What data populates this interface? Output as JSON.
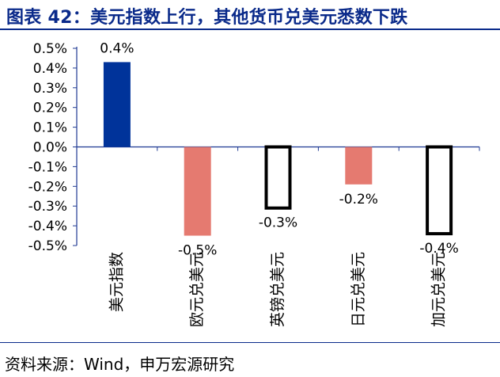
{
  "header": {
    "title": "图表 42：美元指数上行，其他货币兑美元悉数下跌"
  },
  "footer": {
    "source": "资料来源：Wind，申万宏源研究"
  },
  "chart_data": {
    "type": "bar",
    "title": "",
    "xlabel": "",
    "ylabel": "",
    "ylim": [
      -0.5,
      0.5
    ],
    "yticks": [
      "0.5%",
      "0.4%",
      "0.3%",
      "0.2%",
      "0.1%",
      "0.0%",
      "-0.1%",
      "-0.2%",
      "-0.3%",
      "-0.4%",
      "-0.5%"
    ],
    "categories": [
      "美元指数",
      "欧元兑美元",
      "英镑兑美元",
      "日元兑美元",
      "加元兑美元"
    ],
    "values": [
      0.43,
      -0.45,
      -0.31,
      -0.19,
      -0.44
    ],
    "data_labels": [
      "0.4%",
      "-0.5%",
      "-0.3%",
      "-0.2%",
      "-0.4%"
    ],
    "bar_styles": [
      "solid",
      "solid",
      "outline",
      "solid",
      "outline"
    ],
    "bar_colors": [
      "#00339a",
      "#e57a70",
      "#000000",
      "#e57a70",
      "#000000"
    ],
    "axis_color": "#1f3a93",
    "grid": false,
    "legend": "none"
  }
}
